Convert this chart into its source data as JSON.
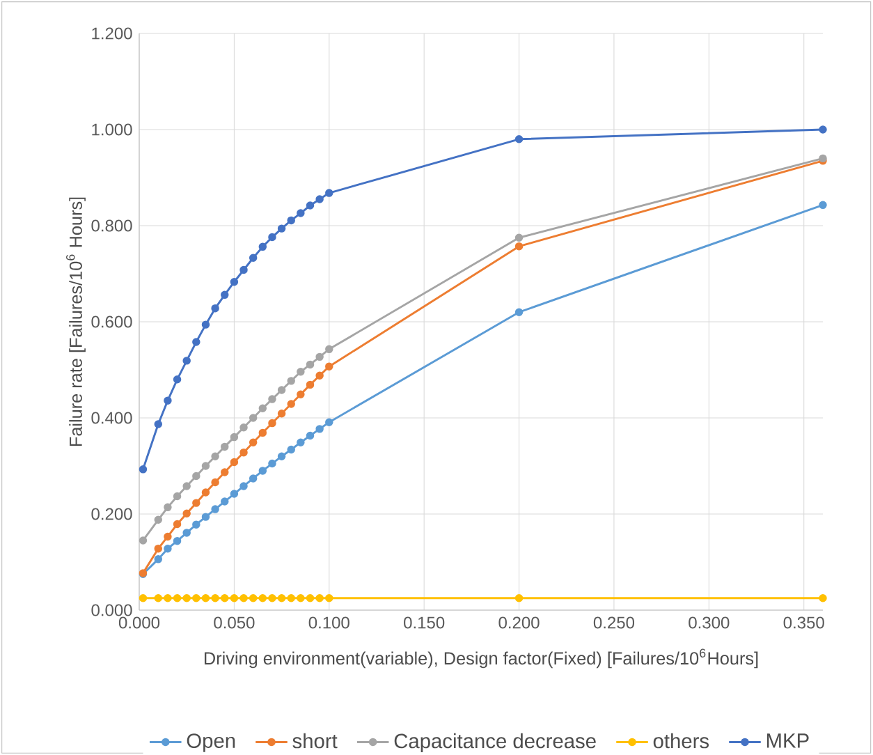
{
  "chart_data": {
    "type": "line",
    "xlabel": "Driving environment(variable), Design factor(Fixed)  [Failures/10$^{6}$Hours]",
    "ylabel": "Failure rate  [Failures/10$^{6}$ Hours]",
    "x": [
      0.002,
      0.01,
      0.015,
      0.02,
      0.025,
      0.03,
      0.035,
      0.04,
      0.045,
      0.05,
      0.055,
      0.06,
      0.065,
      0.07,
      0.075,
      0.08,
      0.085,
      0.09,
      0.095,
      0.1,
      0.2,
      0.36
    ],
    "series": [
      {
        "name": "Open",
        "color": "#5b9bd5",
        "values": [
          0.075,
          0.106,
          0.128,
          0.144,
          0.161,
          0.178,
          0.194,
          0.21,
          0.226,
          0.242,
          0.258,
          0.274,
          0.29,
          0.305,
          0.32,
          0.334,
          0.349,
          0.363,
          0.377,
          0.391,
          0.62,
          0.843
        ]
      },
      {
        "name": "short",
        "color": "#ed7d31",
        "values": [
          0.077,
          0.128,
          0.153,
          0.179,
          0.201,
          0.223,
          0.245,
          0.266,
          0.287,
          0.308,
          0.328,
          0.349,
          0.369,
          0.389,
          0.409,
          0.429,
          0.449,
          0.469,
          0.488,
          0.507,
          0.757,
          0.935
        ]
      },
      {
        "name": "Capacitance decrease",
        "color": "#a5a5a5",
        "values": [
          0.145,
          0.188,
          0.214,
          0.237,
          0.258,
          0.279,
          0.3,
          0.32,
          0.34,
          0.36,
          0.38,
          0.4,
          0.42,
          0.439,
          0.458,
          0.477,
          0.496,
          0.511,
          0.527,
          0.543,
          0.775,
          0.94
        ]
      },
      {
        "name": "others",
        "color": "#ffc000",
        "values": [
          0.025,
          0.025,
          0.025,
          0.025,
          0.025,
          0.025,
          0.025,
          0.025,
          0.025,
          0.025,
          0.025,
          0.025,
          0.025,
          0.025,
          0.025,
          0.025,
          0.025,
          0.025,
          0.025,
          0.025,
          0.025,
          0.025
        ]
      },
      {
        "name": "MKP",
        "color": "#4472c4",
        "values": [
          0.293,
          0.387,
          0.436,
          0.48,
          0.519,
          0.558,
          0.594,
          0.628,
          0.656,
          0.683,
          0.708,
          0.733,
          0.756,
          0.776,
          0.794,
          0.811,
          0.826,
          0.842,
          0.855,
          0.868,
          0.98,
          1.0
        ]
      }
    ],
    "xlim": [
      0,
      0.36
    ],
    "xticks": [
      {
        "value": 0,
        "label": "0.000"
      },
      {
        "value": 0.05,
        "label": "0.050"
      },
      {
        "value": 0.1,
        "label": "0.100"
      },
      {
        "value": 0.15,
        "label": "0.150"
      },
      {
        "value": 0.2,
        "label": "0.200"
      },
      {
        "value": 0.25,
        "label": "0.250"
      },
      {
        "value": 0.3,
        "label": "0.300"
      },
      {
        "value": 0.35,
        "label": "0.350"
      }
    ],
    "ylim": [
      0,
      1.2
    ],
    "yticks": [
      {
        "value": 0,
        "label": "0.000"
      },
      {
        "value": 0.2,
        "label": "0.200"
      },
      {
        "value": 0.4,
        "label": "0.400"
      },
      {
        "value": 0.6,
        "label": "0.600"
      },
      {
        "value": 0.8,
        "label": "0.800"
      },
      {
        "value": 1.0,
        "label": "1.000"
      },
      {
        "value": 1.2,
        "label": "1.200"
      }
    ],
    "grid": true,
    "legend": "bottom",
    "marker": "circle",
    "line_style": "solid"
  }
}
